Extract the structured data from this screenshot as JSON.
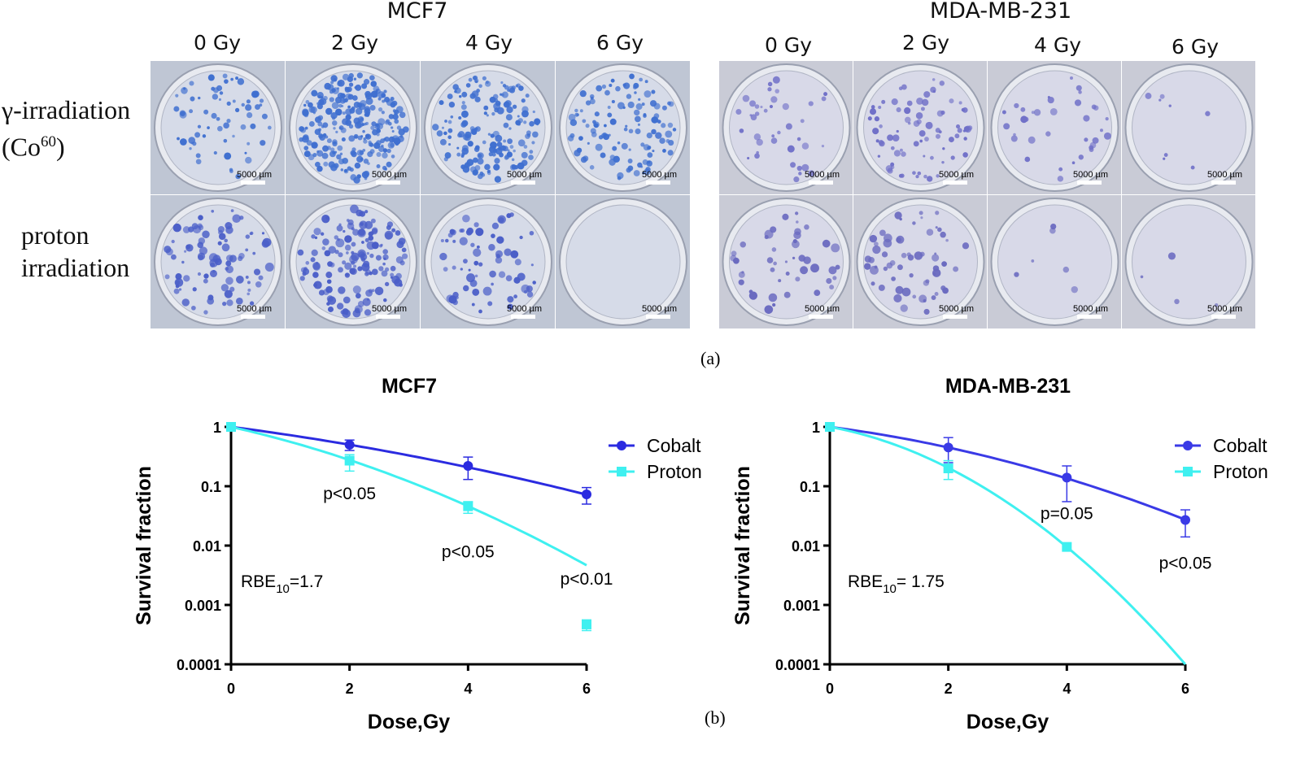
{
  "panel_a": {
    "label": "(a)",
    "cell_lines": [
      {
        "name": "MCF7",
        "doses": [
          "0 Gy",
          "2 Gy",
          "4 Gy",
          "6 Gy"
        ]
      },
      {
        "name": "MDA-MB-231",
        "doses": [
          "0 Gy",
          "2 Gy",
          "4 Gy",
          "6 Gy"
        ]
      }
    ],
    "row_labels": [
      {
        "line1": "γ-irradiation",
        "line2": "(Co",
        "sup": "60",
        "line2_end": ")"
      },
      {
        "line1": "proton",
        "line2": "irradiation"
      }
    ],
    "scale_bar": "5000 µm"
  },
  "panel_b": {
    "label": "(b)"
  },
  "chart_data": [
    {
      "type": "line",
      "title": "MCF7",
      "xlabel": "Dose,Gy",
      "ylabel": "Survival fraction",
      "yscale": "log",
      "xlim": [
        0,
        6
      ],
      "ylim": [
        0.0001,
        1
      ],
      "xticks": [
        "0",
        "2",
        "4",
        "6"
      ],
      "yticks": [
        "1",
        "0.1",
        "0.01",
        "0.001",
        "0.0001"
      ],
      "legend_position": "top-right",
      "x": [
        0,
        2,
        4,
        6
      ],
      "series": [
        {
          "name": "Cobalt",
          "color": "#2b2be0",
          "marker": "circle",
          "values": [
            1,
            0.5,
            0.22,
            0.073
          ],
          "err_low": [
            1,
            0.4,
            0.13,
            0.05
          ],
          "err_high": [
            1,
            0.6,
            0.31,
            0.095
          ],
          "fit": {
            "alpha": 0.3,
            "beta": 0.023
          }
        },
        {
          "name": "Proton",
          "color": "#3ff0f0",
          "marker": "square",
          "values": [
            1,
            0.27,
            0.046,
            0.00047
          ],
          "err_low": [
            1,
            0.18,
            0.035,
            0.00037
          ],
          "err_high": [
            1,
            0.34,
            0.055,
            0.00056
          ],
          "fit": {
            "alpha": 0.517,
            "beta": 0.063
          }
        }
      ],
      "annotations": [
        {
          "text": "p<0.05",
          "x": 2,
          "y": 0.06
        },
        {
          "text": "p<0.05",
          "x": 4,
          "y": 0.0063
        },
        {
          "text": "p<0.01",
          "x": 6,
          "y": 0.0022
        }
      ],
      "rbe": {
        "prefix": "RBE",
        "sub": "10",
        "value": "=1.7"
      }
    },
    {
      "type": "line",
      "title": "MDA-MB-231",
      "xlabel": "Dose,Gy",
      "ylabel": "Survival fraction",
      "yscale": "log",
      "xlim": [
        0,
        6
      ],
      "ylim": [
        0.0001,
        1
      ],
      "xticks": [
        "0",
        "2",
        "4",
        "6"
      ],
      "yticks": [
        "1",
        "0.1",
        "0.01",
        "0.001",
        "0.0001"
      ],
      "legend_position": "top-right",
      "x": [
        0,
        2,
        4,
        6
      ],
      "series": [
        {
          "name": "Cobalt",
          "color": "#3a3ae6",
          "marker": "circle",
          "values": [
            1,
            0.45,
            0.14,
            0.027
          ],
          "err_low": [
            1,
            0.25,
            0.055,
            0.014
          ],
          "err_high": [
            1,
            0.66,
            0.22,
            0.04
          ],
          "fit": {
            "alpha": 0.3,
            "beta": 0.05
          }
        },
        {
          "name": "Proton",
          "color": "#3ff0f0",
          "marker": "square",
          "values": [
            1,
            0.2,
            0.0095,
            null
          ],
          "err_low": [
            1,
            0.13,
            0.0095,
            null
          ],
          "err_high": [
            1,
            0.27,
            0.0095,
            null
          ],
          "fit": {
            "alpha": 0.425,
            "beta": 0.185
          }
        }
      ],
      "annotations": [
        {
          "text": "p=0.05",
          "x": 4,
          "y": 0.028
        },
        {
          "text": "p<0.05",
          "x": 6,
          "y": 0.0041
        }
      ],
      "rbe": {
        "prefix": "RBE",
        "sub": "10",
        "value": "= 1.75"
      }
    }
  ]
}
